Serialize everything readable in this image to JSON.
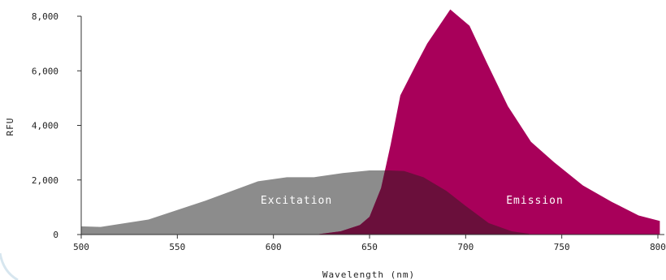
{
  "chart_data": {
    "type": "area",
    "xlabel": "Wavelength (nm)",
    "ylabel": "RFU",
    "xlim": [
      500,
      800
    ],
    "ylim": [
      0,
      8000
    ],
    "xticks": [
      500,
      550,
      600,
      650,
      700,
      750,
      800
    ],
    "yticks": [
      0,
      2000,
      4000,
      6000,
      8000
    ],
    "xtick_labels": [
      "500",
      "550",
      "600",
      "650",
      "700",
      "750",
      "800"
    ],
    "ytick_labels": [
      "0",
      "2,000",
      "4,000",
      "6,000",
      "8,000"
    ],
    "grid": false,
    "series": [
      {
        "name": "Excitation",
        "color": "#8c8c8c",
        "x": [
          500,
          510,
          535,
          565,
          592,
          607,
          621,
          636,
          650,
          660,
          668,
          678,
          690,
          700,
          712,
          724,
          733
        ],
        "y": [
          300,
          280,
          550,
          1250,
          1950,
          2100,
          2100,
          2250,
          2350,
          2350,
          2330,
          2100,
          1600,
          1050,
          420,
          120,
          30
        ]
      },
      {
        "name": "Emission",
        "color": "#a8005a",
        "x": [
          622,
          635,
          645,
          650,
          656,
          661,
          666,
          674,
          680,
          692,
          702,
          711,
          722,
          734,
          746,
          761,
          776,
          790,
          801
        ],
        "y": [
          0,
          120,
          350,
          650,
          1700,
          3300,
          5100,
          6200,
          7000,
          8250,
          7650,
          6300,
          4700,
          3400,
          2650,
          1800,
          1200,
          700,
          500
        ]
      }
    ]
  }
}
